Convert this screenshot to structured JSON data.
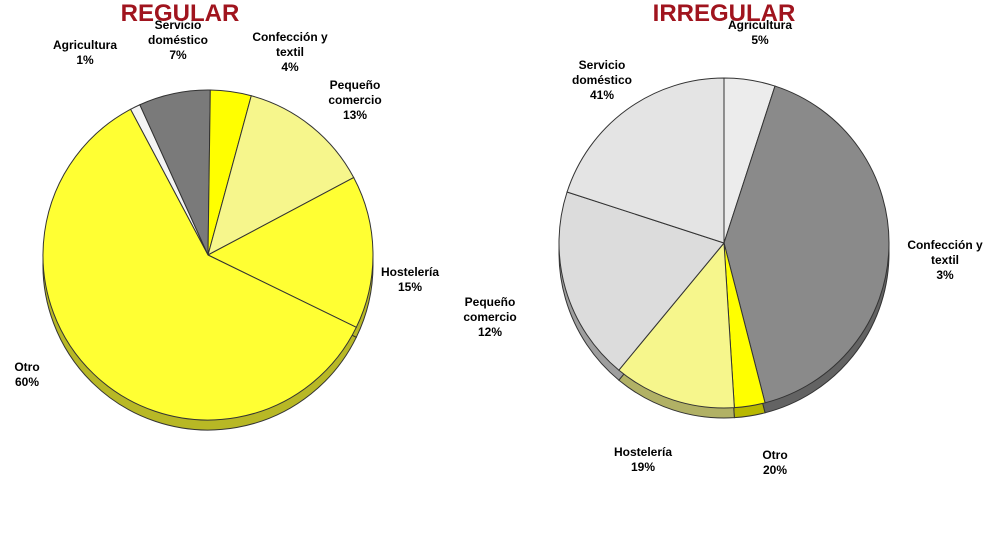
{
  "chart_data": [
    {
      "type": "pie",
      "title": "REGULAR",
      "categories": [
        "Agricultura",
        "Servicio doméstico",
        "Confección y textil",
        "Pequeño comercio",
        "Hostelería",
        "Otro"
      ],
      "values": [
        1,
        7,
        4,
        13,
        15,
        60
      ],
      "value_labels": [
        "1%",
        "7%",
        "4%",
        "13%",
        "15%",
        "60%"
      ],
      "colors": [
        "#f4f4f4",
        "#7a7a7a",
        "#ffff00",
        "#f6f68c",
        "#ffff33",
        "#ffff33"
      ]
    },
    {
      "type": "pie",
      "title": "IRREGULAR",
      "categories": [
        "Agricultura",
        "Servicio doméstico",
        "Confección y textil",
        "Pequeño comercio",
        "Hostelería",
        "Otro"
      ],
      "values": [
        5,
        41,
        3,
        12,
        19,
        20
      ],
      "value_labels": [
        "5%",
        "41%",
        "3%",
        "12%",
        "19%",
        "20%"
      ],
      "colors": [
        "#ececec",
        "#8a8a8a",
        "#ffff00",
        "#f6f68c",
        "#dcdcdc",
        "#e4e4e4"
      ]
    }
  ]
}
